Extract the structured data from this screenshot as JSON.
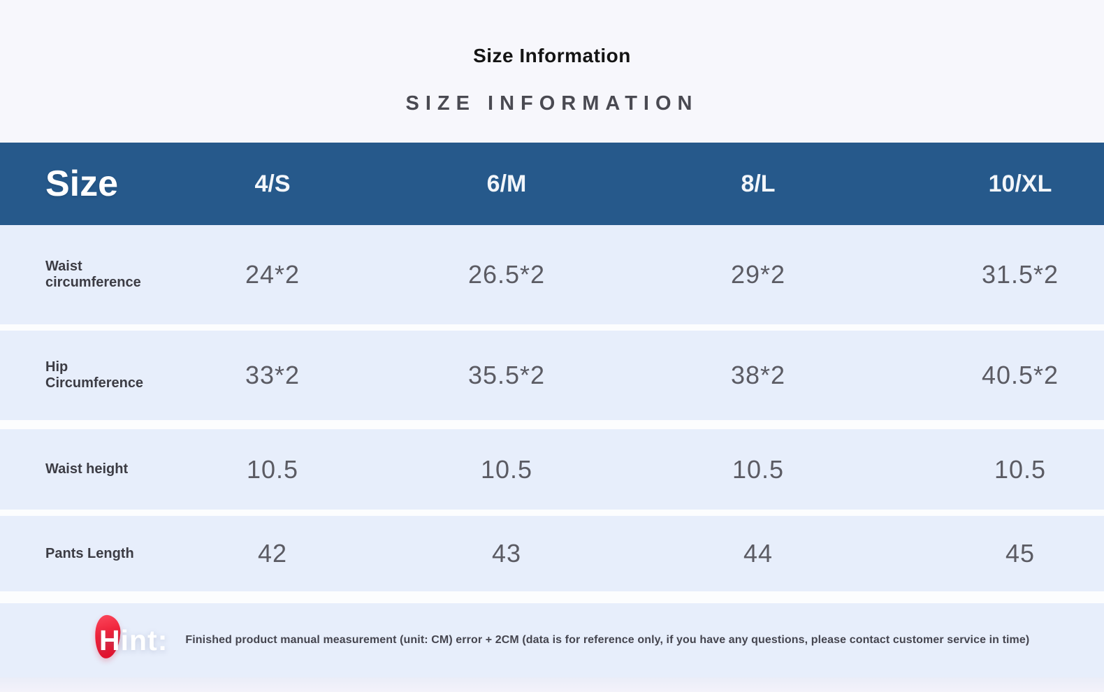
{
  "page": {
    "title": "Size Information",
    "subtitle": "SIZE INFORMATION"
  },
  "table": {
    "corner_label": "Size",
    "columns": [
      "4/S",
      "6/M",
      "8/L",
      "10/XL"
    ],
    "rows": [
      {
        "label": "Waist circumference",
        "values": [
          "24*2",
          "26.5*2",
          "29*2",
          "31.5*2"
        ]
      },
      {
        "label": "Hip Circumference",
        "values": [
          "33*2",
          "35.5*2",
          "38*2",
          "40.5*2"
        ]
      },
      {
        "label": "Waist height",
        "values": [
          "10.5",
          "10.5",
          "10.5",
          "10.5"
        ]
      },
      {
        "label": "Pants Length",
        "values": [
          "42",
          "43",
          "44",
          "45"
        ]
      }
    ]
  },
  "hint": {
    "label": "Hint:",
    "text": "Finished product manual measurement (unit: CM) error + 2CM (data is for reference only, if you have any questions, please contact customer service in time)"
  },
  "colors": {
    "header_bg": "#26598b",
    "row_bg": "#e7eefb",
    "page_bg": "#f7f7fc",
    "hint_accent_red": "#ef1f37",
    "value_text": "#5b5b63",
    "label_text": "#3c3c44"
  },
  "chart_data": {
    "type": "table",
    "title": "Size Information",
    "subtitle": "SIZE INFORMATION",
    "unit": "CM",
    "columns": [
      "Size",
      "4/S",
      "6/M",
      "8/L",
      "10/XL"
    ],
    "rows": [
      [
        "Waist circumference",
        "24*2",
        "26.5*2",
        "29*2",
        "31.5*2"
      ],
      [
        "Hip Circumference",
        "33*2",
        "35.5*2",
        "38*2",
        "40.5*2"
      ],
      [
        "Waist height",
        "10.5",
        "10.5",
        "10.5",
        "10.5"
      ],
      [
        "Pants Length",
        "42",
        "43",
        "44",
        "45"
      ]
    ],
    "note": "Finished product manual measurement (unit: CM) error + 2CM (data is for reference only, if you have any questions, please contact customer service in time)"
  }
}
